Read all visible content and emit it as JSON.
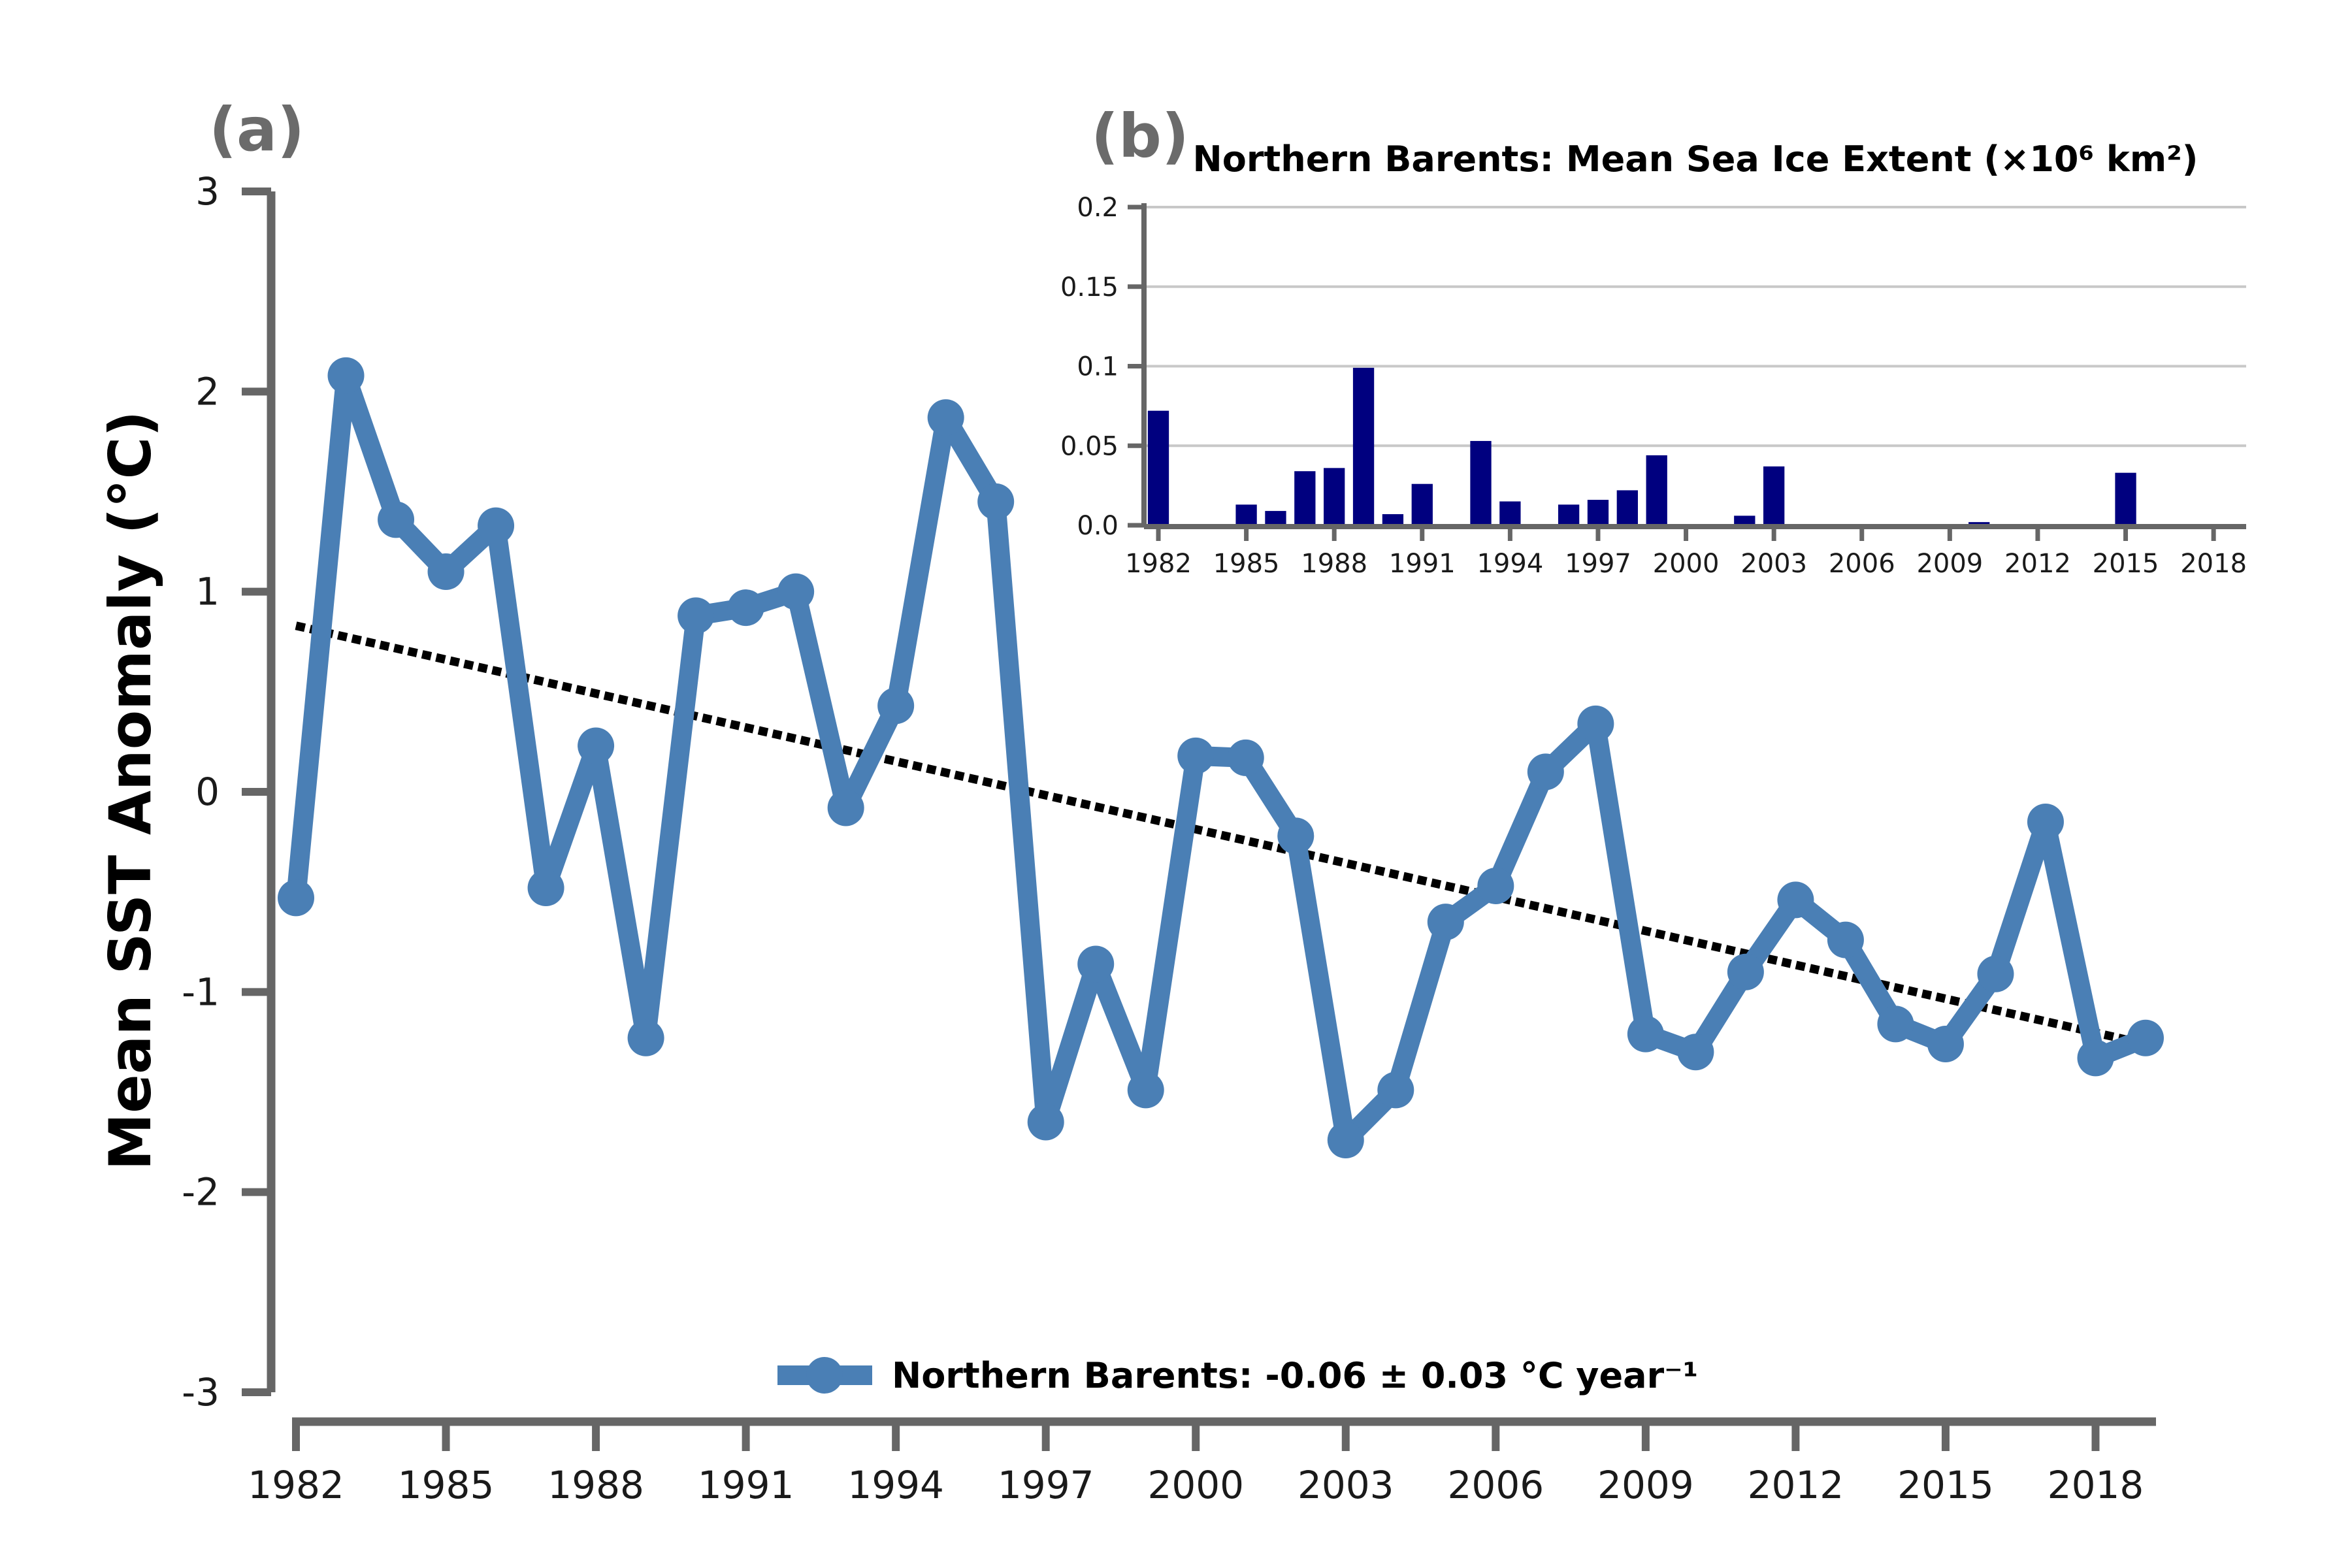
{
  "colors": {
    "axis": "#666666",
    "sst_line": "#4a7fb5",
    "trend": "#000000",
    "bars": "#00007f",
    "grid": "#c8c8c8"
  },
  "chart_data": [
    {
      "panel": "(a)",
      "type": "line",
      "ylabel": "Mean SST Anomaly (°C)",
      "ylim": [
        -3,
        3
      ],
      "yticks": [
        "3",
        "2",
        "1",
        "0",
        "-1",
        "-2",
        "-3"
      ],
      "xlim": [
        1982,
        2019
      ],
      "xticks": [
        "1982",
        "1985",
        "1988",
        "1991",
        "1994",
        "1997",
        "2000",
        "2003",
        "2006",
        "2009",
        "2012",
        "2015",
        "2018"
      ],
      "legend_position": "bottom-center",
      "series": [
        {
          "name": "Northern Barents: -0.06 ± 0.03 °C year⁻¹",
          "x": [
            1982,
            1983,
            1984,
            1985,
            1986,
            1987,
            1988,
            1989,
            1990,
            1991,
            1992,
            1993,
            1994,
            1995,
            1996,
            1997,
            1998,
            1999,
            2000,
            2001,
            2002,
            2003,
            2004,
            2005,
            2006,
            2007,
            2008,
            2009,
            2010,
            2011,
            2012,
            2013,
            2014,
            2015,
            2016,
            2017,
            2018,
            2019
          ],
          "y": [
            -0.53,
            2.08,
            1.36,
            1.1,
            1.33,
            -0.48,
            0.23,
            -1.23,
            0.88,
            0.92,
            1.0,
            -0.08,
            0.43,
            1.87,
            1.45,
            -1.65,
            -0.86,
            -1.49,
            0.18,
            0.17,
            -0.22,
            -1.74,
            -1.49,
            -0.65,
            -0.47,
            0.1,
            0.34,
            -1.21,
            -1.3,
            -0.9,
            -0.54,
            -0.74,
            -1.16,
            -1.26,
            -0.91,
            -0.15,
            -1.33,
            -1.23
          ]
        }
      ],
      "trend": {
        "x": [
          1982,
          2019
        ],
        "y": [
          0.83,
          -1.26
        ]
      }
    },
    {
      "panel": "(b)",
      "type": "bar",
      "title": "Northern Barents: Mean Sea Ice Extent (×10⁶ km²)",
      "ylim": [
        0,
        0.2
      ],
      "yticks": [
        "0.2",
        "0.15",
        "0.1",
        "0.05",
        "0.0"
      ],
      "xlim": [
        1982,
        2019
      ],
      "xticks": [
        "1982",
        "1985",
        "1988",
        "1991",
        "1994",
        "1997",
        "2000",
        "2003",
        "2006",
        "2009",
        "2012",
        "2015",
        "2018"
      ],
      "grid": true,
      "x": [
        1982,
        1983,
        1984,
        1985,
        1986,
        1987,
        1988,
        1989,
        1990,
        1991,
        1992,
        1993,
        1994,
        1995,
        1996,
        1997,
        1998,
        1999,
        2000,
        2001,
        2002,
        2003,
        2004,
        2005,
        2006,
        2007,
        2008,
        2009,
        2010,
        2011,
        2012,
        2013,
        2014,
        2015,
        2016,
        2017,
        2018,
        2019
      ],
      "values": [
        0.072,
        0,
        0,
        0.013,
        0.009,
        0.034,
        0.036,
        0.099,
        0.007,
        0.026,
        0,
        0.053,
        0.015,
        0,
        0.013,
        0.016,
        0.022,
        0.044,
        0,
        0,
        0.006,
        0.037,
        0,
        0,
        0,
        0,
        0,
        0,
        0.002,
        0,
        0,
        0,
        0,
        0.033,
        0,
        0,
        0,
        0
      ]
    }
  ]
}
